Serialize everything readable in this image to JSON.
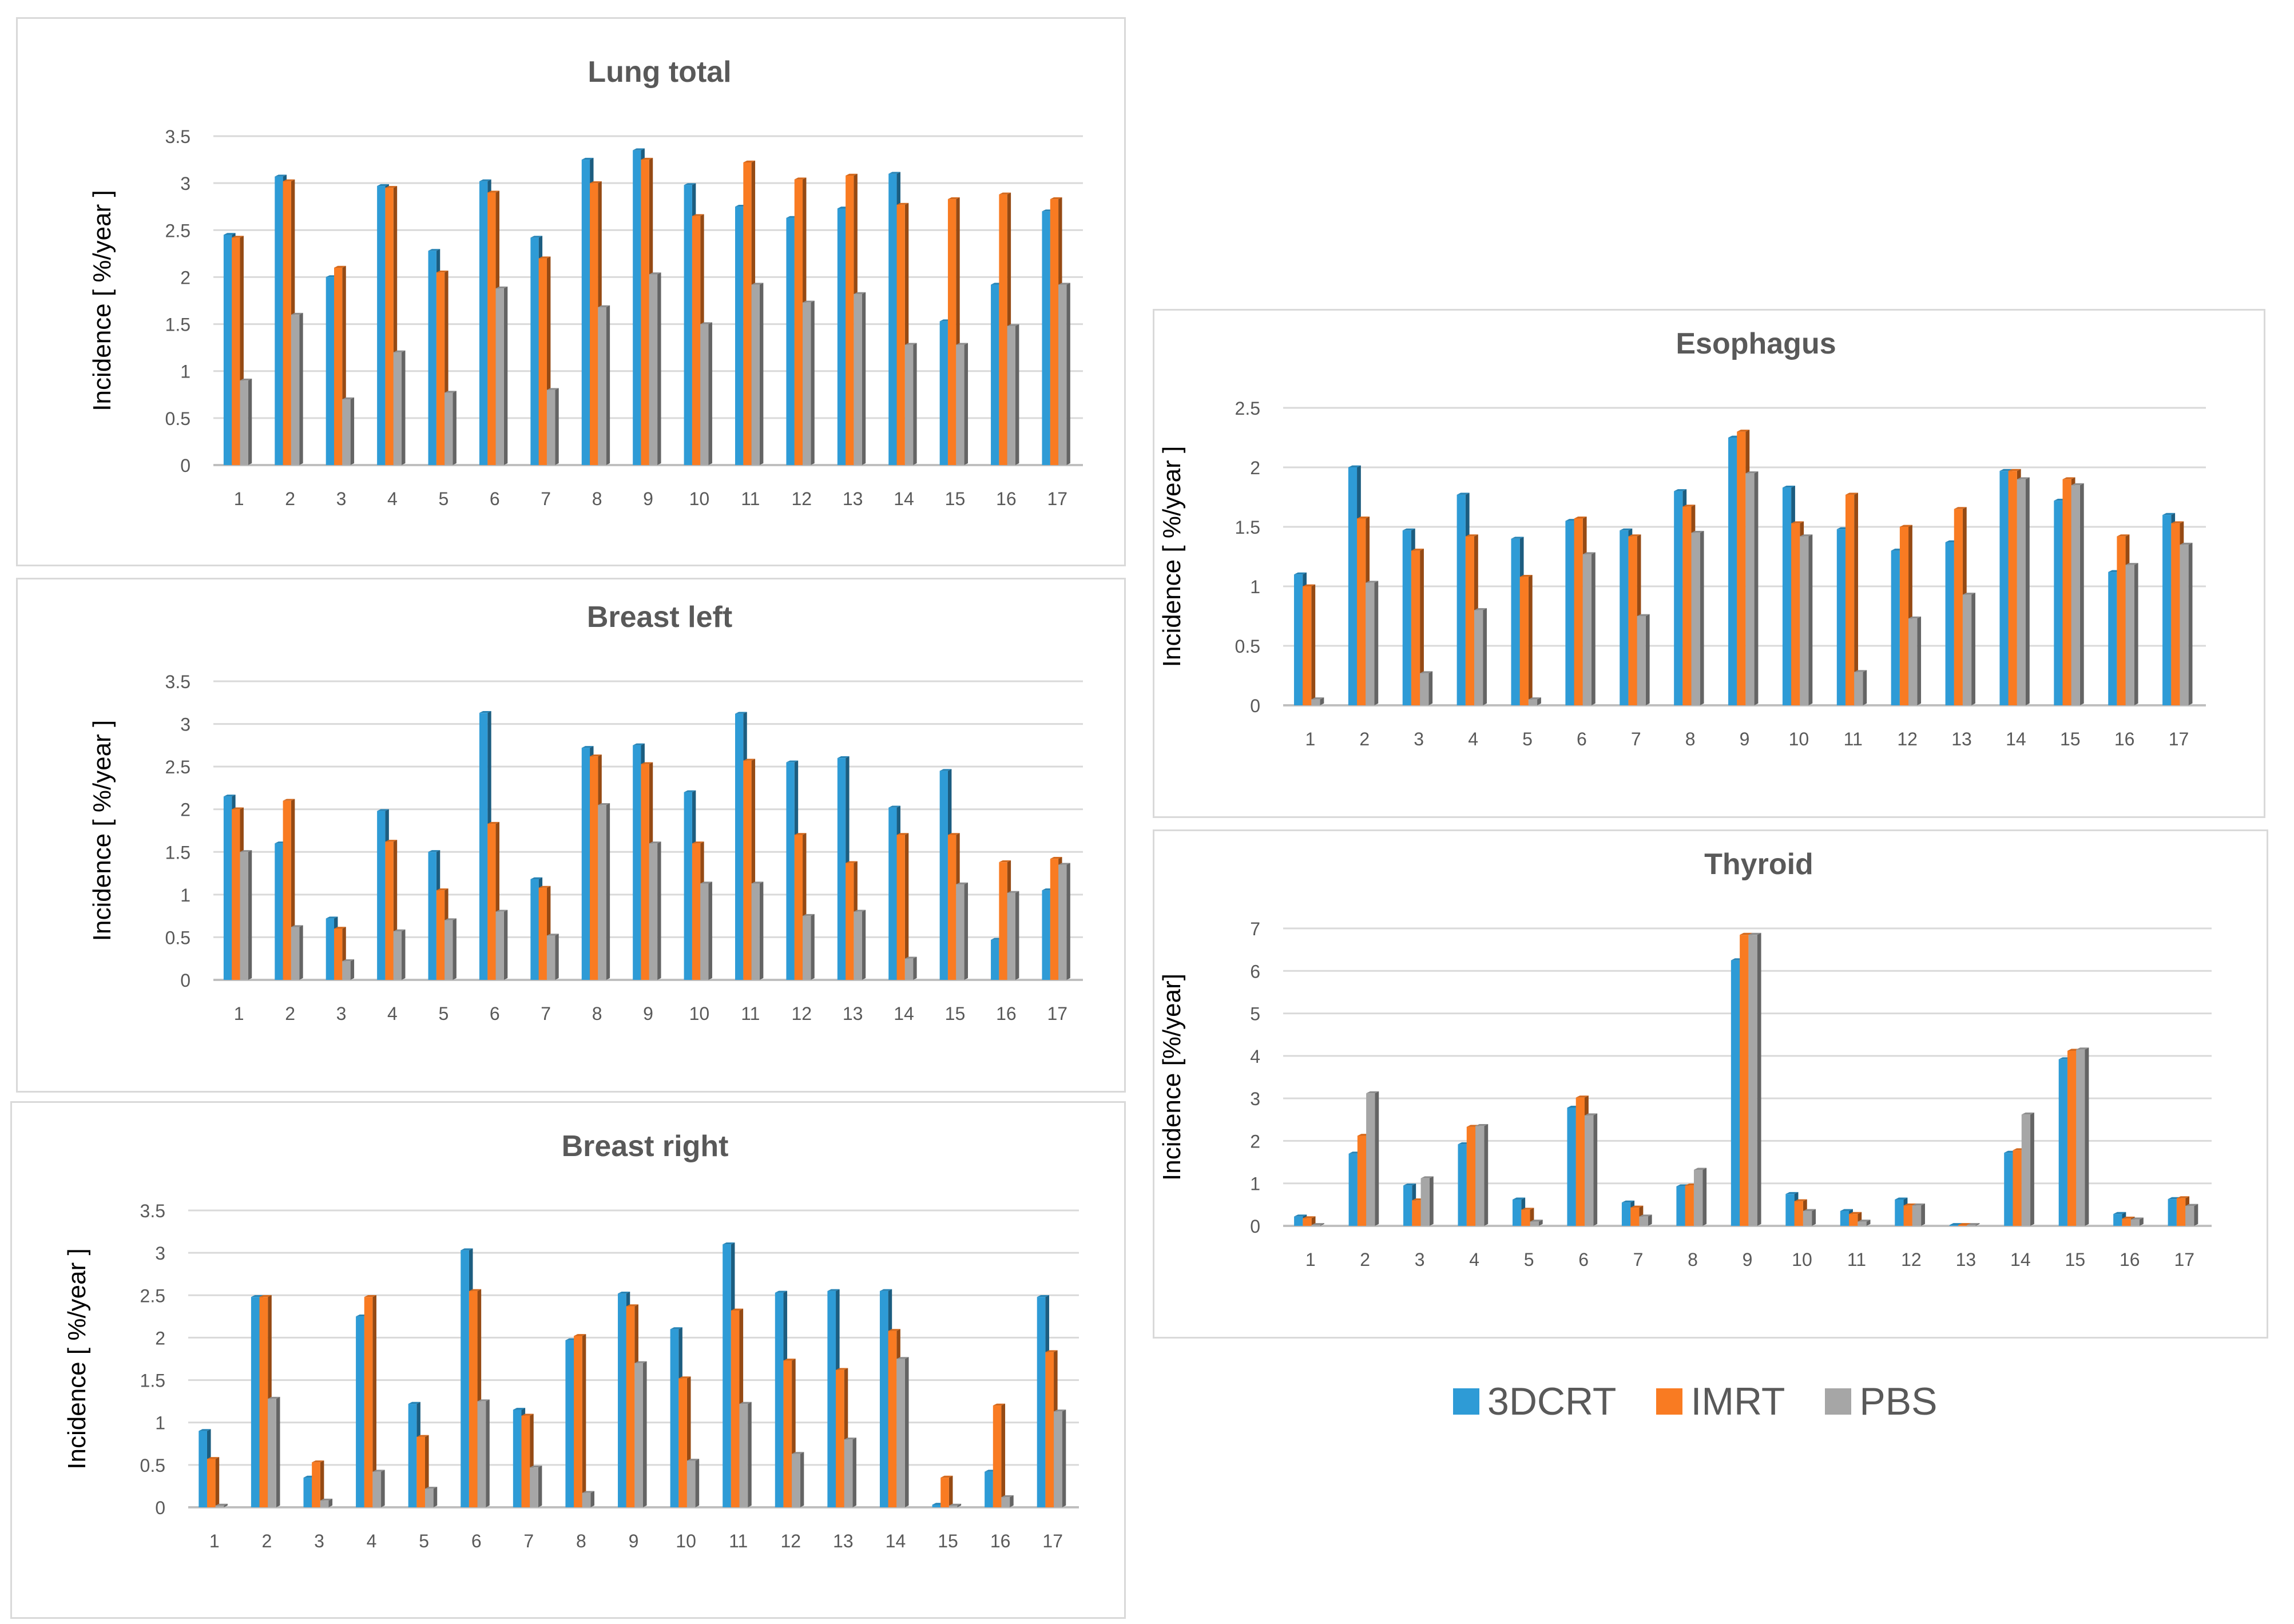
{
  "legend": {
    "items": [
      {
        "label": "3DCRT",
        "color": "#2e9bd6"
      },
      {
        "label": "IMRT",
        "color": "#f97b22"
      },
      {
        "label": "PBS",
        "color": "#a6a6a6"
      }
    ]
  },
  "chart_data": [
    {
      "type": "bar",
      "title": "Lung total",
      "ylabel": "Incidence  [ %/year ]",
      "xlabel": "",
      "ylim": [
        0,
        3.5
      ],
      "yticks": [
        "0",
        "0.5",
        "1",
        "1.5",
        "2",
        "2.5",
        "3",
        "3.5"
      ],
      "categories": [
        "1",
        "2",
        "3",
        "4",
        "5",
        "6",
        "7",
        "8",
        "9",
        "10",
        "11",
        "12",
        "13",
        "14",
        "15",
        "16",
        "17"
      ],
      "series": [
        {
          "name": "3DCRT",
          "values": [
            2.45,
            3.07,
            2.0,
            2.97,
            2.28,
            3.02,
            2.42,
            3.25,
            3.35,
            2.98,
            2.75,
            2.63,
            2.73,
            3.1,
            1.53,
            1.92,
            2.7
          ]
        },
        {
          "name": "IMRT",
          "values": [
            2.42,
            3.02,
            2.1,
            2.95,
            2.05,
            2.9,
            2.2,
            3.0,
            3.25,
            2.65,
            3.22,
            3.04,
            3.08,
            2.77,
            2.83,
            2.88,
            2.83
          ]
        },
        {
          "name": "PBS",
          "values": [
            0.9,
            1.6,
            0.7,
            1.2,
            0.77,
            1.88,
            0.8,
            1.68,
            2.03,
            1.5,
            1.92,
            1.73,
            1.82,
            1.28,
            1.28,
            1.48,
            1.92
          ]
        }
      ]
    },
    {
      "type": "bar",
      "title": "Breast left",
      "ylabel": "Incidence  [ %/year ]",
      "xlabel": "",
      "ylim": [
        0,
        3.5
      ],
      "yticks": [
        "0",
        "0.5",
        "1",
        "1.5",
        "2",
        "2.5",
        "3",
        "3.5"
      ],
      "categories": [
        "1",
        "2",
        "3",
        "4",
        "5",
        "6",
        "7",
        "8",
        "9",
        "10",
        "11",
        "12",
        "13",
        "14",
        "15",
        "16",
        "17"
      ],
      "series": [
        {
          "name": "3DCRT",
          "values": [
            2.15,
            1.6,
            0.72,
            1.98,
            1.5,
            3.13,
            1.18,
            2.72,
            2.75,
            2.2,
            3.12,
            2.55,
            2.6,
            2.02,
            2.45,
            0.47,
            1.05
          ]
        },
        {
          "name": "IMRT",
          "values": [
            2.0,
            2.1,
            0.6,
            1.62,
            1.05,
            1.83,
            1.08,
            2.62,
            2.53,
            1.6,
            2.57,
            1.7,
            1.37,
            1.7,
            1.7,
            1.38,
            1.42
          ]
        },
        {
          "name": "PBS",
          "values": [
            1.5,
            0.62,
            0.22,
            0.57,
            0.7,
            0.8,
            0.52,
            2.05,
            1.6,
            1.13,
            1.13,
            0.75,
            0.8,
            0.25,
            1.12,
            1.02,
            1.35
          ]
        }
      ]
    },
    {
      "type": "bar",
      "title": "Breast right",
      "ylabel": "Incidence  [ %/year ]",
      "xlabel": "",
      "ylim": [
        0,
        3.5
      ],
      "yticks": [
        "0",
        "0.5",
        "1",
        "1.5",
        "2",
        "2.5",
        "3",
        "3.5"
      ],
      "categories": [
        "1",
        "2",
        "3",
        "4",
        "5",
        "6",
        "7",
        "8",
        "9",
        "10",
        "11",
        "12",
        "13",
        "14",
        "15",
        "16",
        "17"
      ],
      "series": [
        {
          "name": "3DCRT",
          "values": [
            0.9,
            2.48,
            0.35,
            2.25,
            1.22,
            3.03,
            1.15,
            1.97,
            2.52,
            2.1,
            3.1,
            2.53,
            2.55,
            2.55,
            0.03,
            0.42,
            2.48
          ]
        },
        {
          "name": "IMRT",
          "values": [
            0.57,
            2.48,
            0.53,
            2.48,
            0.83,
            2.55,
            1.08,
            2.02,
            2.37,
            1.52,
            2.32,
            1.73,
            1.62,
            2.08,
            0.35,
            1.2,
            1.83
          ]
        },
        {
          "name": "PBS",
          "values": [
            0.02,
            1.28,
            0.08,
            0.42,
            0.22,
            1.25,
            0.47,
            0.17,
            1.7,
            0.55,
            1.22,
            0.63,
            0.8,
            1.75,
            0.02,
            0.12,
            1.13
          ]
        }
      ]
    },
    {
      "type": "bar",
      "title": "Esophagus",
      "ylabel": "Incidence  [ %/year ]",
      "xlabel": "",
      "ylim": [
        0,
        2.5
      ],
      "yticks": [
        "0",
        "0.5",
        "1",
        "1.5",
        "2",
        "2.5"
      ],
      "categories": [
        "1",
        "2",
        "3",
        "4",
        "5",
        "6",
        "7",
        "8",
        "9",
        "10",
        "11",
        "12",
        "13",
        "14",
        "15",
        "16",
        "17"
      ],
      "series": [
        {
          "name": "3DCRT",
          "values": [
            1.1,
            2.0,
            1.47,
            1.77,
            1.4,
            1.55,
            1.47,
            1.8,
            2.25,
            1.83,
            1.48,
            1.3,
            1.37,
            1.97,
            1.72,
            1.12,
            1.6
          ]
        },
        {
          "name": "IMRT",
          "values": [
            1.0,
            1.57,
            1.3,
            1.42,
            1.08,
            1.57,
            1.42,
            1.67,
            2.3,
            1.53,
            1.77,
            1.5,
            1.65,
            1.97,
            1.9,
            1.42,
            1.53
          ]
        },
        {
          "name": "PBS",
          "values": [
            0.05,
            1.03,
            0.27,
            0.8,
            0.05,
            1.27,
            0.75,
            1.45,
            1.95,
            1.42,
            0.28,
            0.73,
            0.93,
            1.9,
            1.85,
            1.18,
            1.35
          ]
        }
      ]
    },
    {
      "type": "bar",
      "title": "Thyroid",
      "ylabel": "Incidence [%/year]",
      "xlabel": "",
      "ylim": [
        0,
        7
      ],
      "yticks": [
        "0",
        "1",
        "2",
        "3",
        "4",
        "5",
        "6",
        "7"
      ],
      "categories": [
        "1",
        "2",
        "3",
        "4",
        "5",
        "6",
        "7",
        "8",
        "9",
        "10",
        "11",
        "12",
        "13",
        "14",
        "15",
        "16",
        "17"
      ],
      "series": [
        {
          "name": "3DCRT",
          "values": [
            0.22,
            1.7,
            0.95,
            1.92,
            0.62,
            2.78,
            0.55,
            0.93,
            6.25,
            0.75,
            0.35,
            0.62,
            0.02,
            1.72,
            3.92,
            0.28,
            0.63
          ]
        },
        {
          "name": "IMRT",
          "values": [
            0.18,
            2.12,
            0.6,
            2.33,
            0.38,
            3.02,
            0.43,
            0.95,
            6.85,
            0.58,
            0.28,
            0.48,
            0.02,
            1.78,
            4.12,
            0.17,
            0.65
          ]
        },
        {
          "name": "PBS",
          "values": [
            0.02,
            3.12,
            1.12,
            2.35,
            0.1,
            2.6,
            0.22,
            1.32,
            6.85,
            0.35,
            0.1,
            0.48,
            0.02,
            2.62,
            4.15,
            0.15,
            0.47
          ]
        }
      ]
    }
  ]
}
